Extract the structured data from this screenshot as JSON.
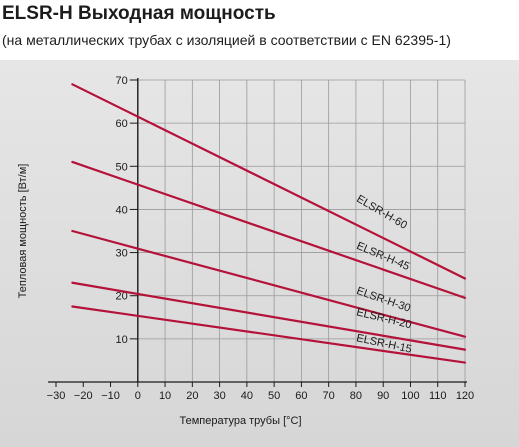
{
  "header": {
    "title": "ELSR-H Выходная мощность",
    "subtitle": "(на металлических трубах с изоляцией в соответствии с EN 62395-1)"
  },
  "chart_data": {
    "type": "line",
    "xlabel": "Температура трубы [°C]",
    "ylabel": "Тепловая мощность [Вт/м]",
    "xlim": [
      -30,
      120
    ],
    "ylim": [
      0,
      70
    ],
    "xticks": [
      -30,
      -20,
      -10,
      0,
      10,
      20,
      30,
      40,
      50,
      60,
      70,
      80,
      90,
      100,
      110,
      120
    ],
    "xtick_labels": [
      "−30",
      "−20",
      "−10",
      "0",
      "10",
      "20",
      "30",
      "40",
      "50",
      "60",
      "70",
      "80",
      "90",
      "100",
      "110",
      "120"
    ],
    "yticks": [
      10,
      20,
      30,
      40,
      50,
      60,
      70
    ],
    "ytick_labels": [
      "10",
      "20",
      "30",
      "40",
      "50",
      "60",
      "70"
    ],
    "grid": true,
    "line_color": "#b5123a",
    "series": [
      {
        "name": "ELSR-H-60",
        "x": [
          -24,
          120
        ],
        "y": [
          69,
          24
        ],
        "label_at": [
          80,
          42
        ]
      },
      {
        "name": "ELSR-H-45",
        "x": [
          -24,
          120
        ],
        "y": [
          51,
          19.5
        ],
        "label_at": [
          80,
          31
        ]
      },
      {
        "name": "ELSR-H-30",
        "x": [
          -24,
          120
        ],
        "y": [
          35,
          10.5
        ],
        "label_at": [
          80,
          20.5
        ]
      },
      {
        "name": "ELSR-H-20",
        "x": [
          -24,
          120
        ],
        "y": [
          23,
          7.5
        ],
        "label_at": [
          80,
          15.5
        ]
      },
      {
        "name": "ELSR-H-15",
        "x": [
          -24,
          120
        ],
        "y": [
          17.5,
          4.5
        ],
        "label_at": [
          80,
          9.5
        ]
      }
    ]
  }
}
